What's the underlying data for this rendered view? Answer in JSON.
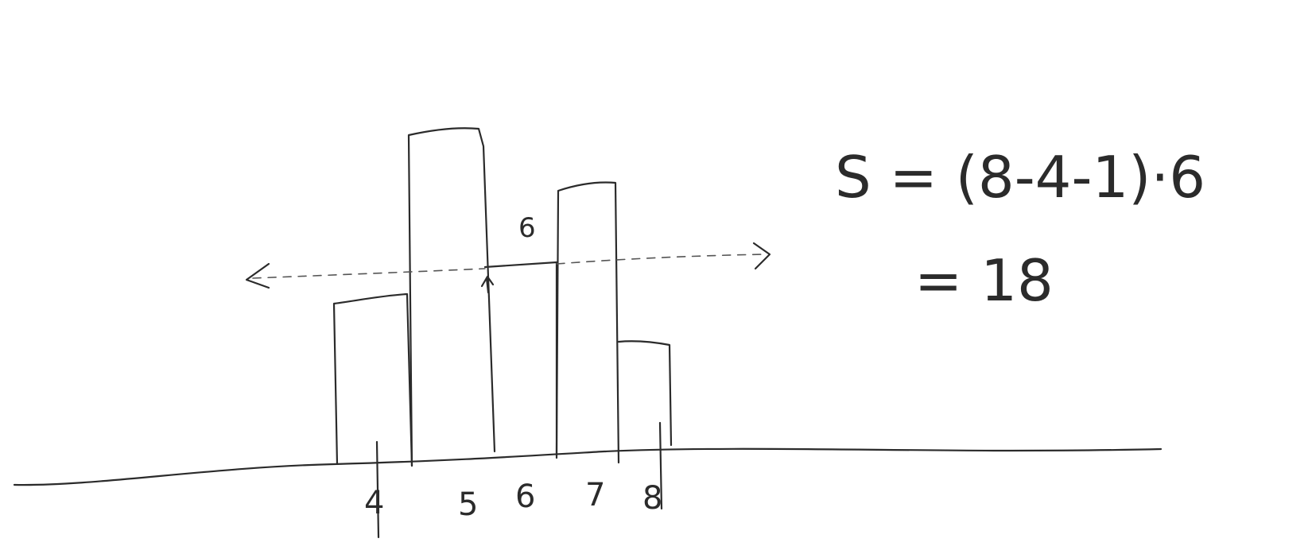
{
  "diagram": {
    "tick_labels": [
      "4",
      "5",
      "6",
      "7",
      "8"
    ],
    "bar_height_label": "6",
    "formula": {
      "line1": "S = (8-4-1)·6",
      "line2": "= 18"
    }
  }
}
